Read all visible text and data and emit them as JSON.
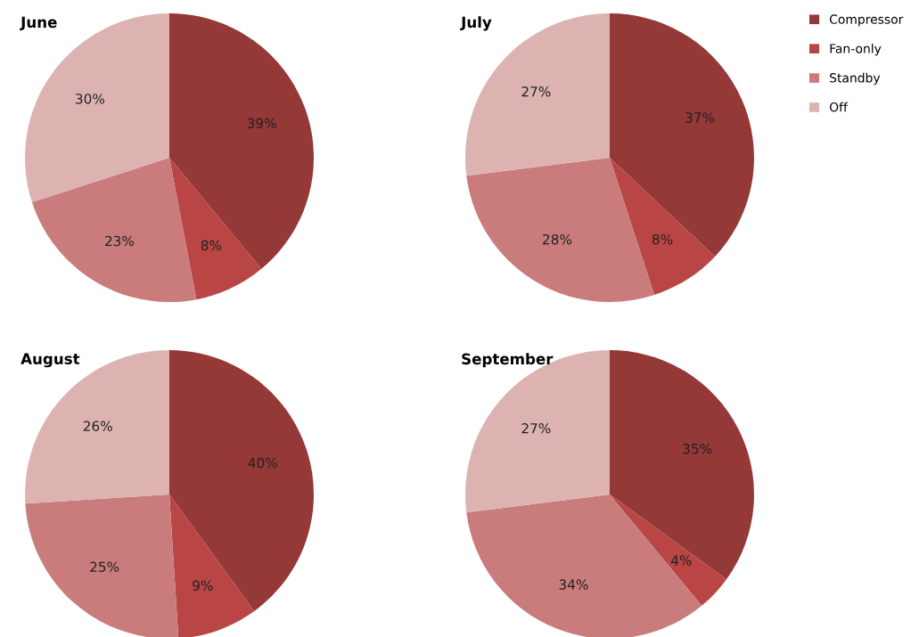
{
  "chart_data": [
    {
      "type": "pie",
      "title": "June",
      "categories": [
        null,
        null,
        null,
        null
      ],
      "values": [
        39,
        8,
        23,
        30
      ],
      "value_labels": [
        "39%",
        "8%",
        "23%",
        "30%"
      ],
      "colors": [
        "#943838",
        "#b94545",
        "#c97c7b",
        "#ddb3b2"
      ]
    },
    {
      "type": "pie",
      "title": "July",
      "categories": [
        "Compressor",
        "Fan-only",
        "Standby",
        "Off"
      ],
      "values": [
        37,
        8,
        28,
        27
      ],
      "value_labels": [
        "37%",
        "8%",
        "28%",
        "27%"
      ],
      "colors": [
        "#943838",
        "#b94545",
        "#c97c7b",
        "#ddb3b2"
      ],
      "legend": "top right"
    },
    {
      "type": "pie",
      "title": "August",
      "categories": [
        null,
        null,
        null,
        null
      ],
      "values": [
        40,
        9,
        25,
        26
      ],
      "value_labels": [
        "40%",
        "9%",
        "25%",
        "26%"
      ],
      "colors": [
        "#943838",
        "#b94545",
        "#c97c7b",
        "#ddb3b2"
      ]
    },
    {
      "type": "pie",
      "title": "September",
      "categories": [
        null,
        null,
        null,
        null
      ],
      "values": [
        35,
        4,
        34,
        27
      ],
      "value_labels": [
        "35%",
        "4%",
        "34%",
        "27%"
      ],
      "colors": [
        "#943838",
        "#b94545",
        "#c97c7b",
        "#ddb3b2"
      ]
    }
  ]
}
